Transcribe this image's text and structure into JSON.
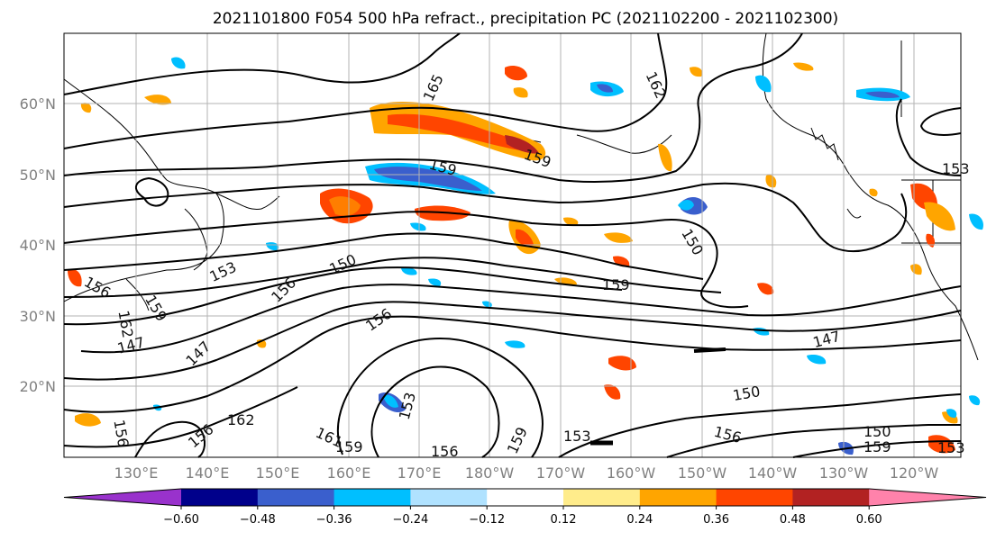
{
  "title": "2021101800 F054 500 hPa refract., precipitation PC (2021102200 - 2021102300)",
  "lat_labels": [
    "60°N",
    "50°N",
    "40°N",
    "30°N",
    "20°N"
  ],
  "lon_labels": [
    "130°E",
    "140°E",
    "150°E",
    "160°E",
    "170°E",
    "180°W",
    "170°W",
    "160°W",
    "150°W",
    "140°W",
    "130°W",
    "120°W"
  ],
  "colorbar": {
    "ticks": [
      "−0.60",
      "−0.48",
      "−0.36",
      "−0.24",
      "−0.12",
      "0.12",
      "0.24",
      "0.36",
      "0.48",
      "0.60"
    ],
    "colors": [
      "#9932cc",
      "#00008b",
      "#3a5fcd",
      "#00bfff",
      "#b0e2ff",
      "#ffffff",
      "#ffec8b",
      "#ffa500",
      "#ff4500",
      "#b22222",
      "#ff82ab"
    ]
  },
  "contour_labels": [
    "165",
    "162",
    "159",
    "159",
    "153",
    "150",
    "153",
    "156",
    "159",
    "162",
    "150",
    "159",
    "156",
    "147",
    "156",
    "147",
    "153",
    "150",
    "147",
    "156",
    "162",
    "161",
    "159",
    "156",
    "159",
    "153",
    "156",
    "150",
    "159",
    "153",
    "156"
  ]
}
